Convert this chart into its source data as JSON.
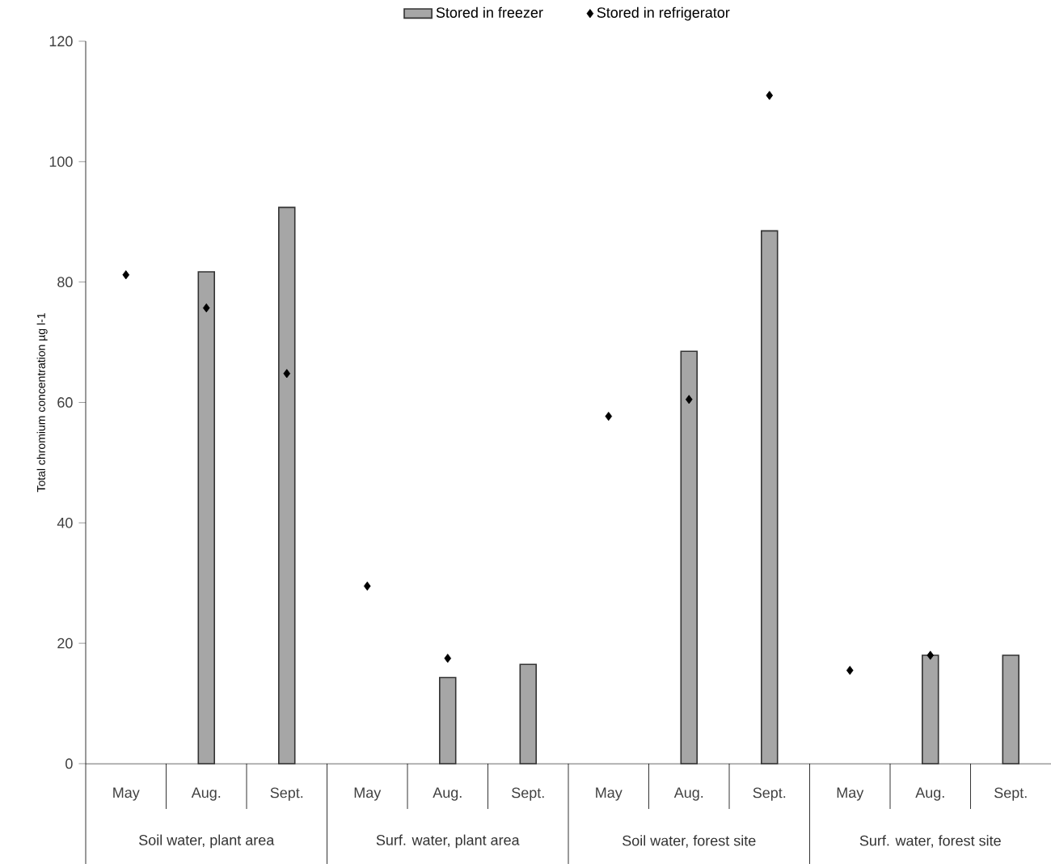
{
  "chart_data": {
    "type": "bar",
    "ylabel": "Total chromium concentration µg l-1",
    "categories": [
      "May",
      "Aug.",
      "Sept.",
      "May",
      "Aug.",
      "Sept.",
      "May",
      "Aug.",
      "Sept.",
      "May",
      "Aug.",
      "Sept."
    ],
    "annotations": [
      "Soil water, plant area",
      "Surf. water, plant area",
      "Soil water, forest site",
      "Surf. water, forest site"
    ],
    "series": [
      {
        "name": "Stored in freezer",
        "color": "#a6a6a6",
        "values": [
          null,
          81.7,
          92.4,
          null,
          14.3,
          16.5,
          null,
          68.5,
          88.5,
          null,
          18,
          18
        ]
      },
      {
        "name": "Stored in refrigerator",
        "type": "scatter",
        "marker": "diamond",
        "color": "#000000",
        "values": [
          81.2,
          75.7,
          64.8,
          29.5,
          17.5,
          null,
          57.7,
          60.5,
          111,
          15.5,
          18,
          null
        ]
      }
    ],
    "ylim": [
      0,
      120
    ],
    "yticks": [
      0,
      20,
      40,
      60,
      80,
      100,
      120
    ],
    "legend": "top"
  }
}
